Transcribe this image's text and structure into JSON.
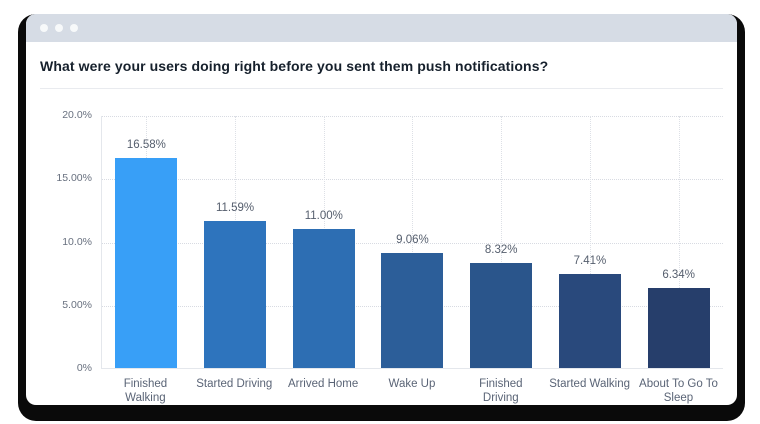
{
  "window": {
    "titlebar": {
      "dot_count": 3,
      "bar_color": "#d6dce5",
      "dot_color": "#f7f9fa"
    }
  },
  "header": {
    "title": "What were your users doing right before you sent them push notifications?"
  },
  "chart_data": {
    "type": "bar",
    "title": "What were your users doing right before you sent them push notifications?",
    "categories": [
      "Finished Walking",
      "Started Driving",
      "Arrived Home",
      "Wake Up",
      "Finished Driving",
      "Started Walking",
      "About To Go To Sleep"
    ],
    "category_labels": [
      "Finished\nWalking",
      "Started Driving",
      "Arrived Home",
      "Wake Up",
      "Finished\nDriving",
      "Started Walking",
      "About To Go To\nSleep"
    ],
    "values": [
      16.58,
      11.59,
      11.0,
      9.06,
      8.32,
      7.41,
      6.34
    ],
    "value_labels": [
      "16.58%",
      "11.59%",
      "11.00%",
      "9.06%",
      "8.32%",
      "7.41%",
      "6.34%"
    ],
    "bar_colors": [
      "#389ff7",
      "#2e74bd",
      "#2d6eb3",
      "#2c5e99",
      "#2a558b",
      "#29497c",
      "#263e6b"
    ],
    "y_ticks": [
      {
        "value": 0,
        "label": "0%"
      },
      {
        "value": 5,
        "label": "5.00%"
      },
      {
        "value": 10,
        "label": "10.0%"
      },
      {
        "value": 15,
        "label": "15.00%"
      },
      {
        "value": 20,
        "label": "20.0%"
      }
    ],
    "ylim": [
      0,
      20
    ],
    "xlabel": "",
    "ylabel": "",
    "legend": "none",
    "grid": "dotted horizontal lines at ticks, dotted vertical line per category"
  }
}
